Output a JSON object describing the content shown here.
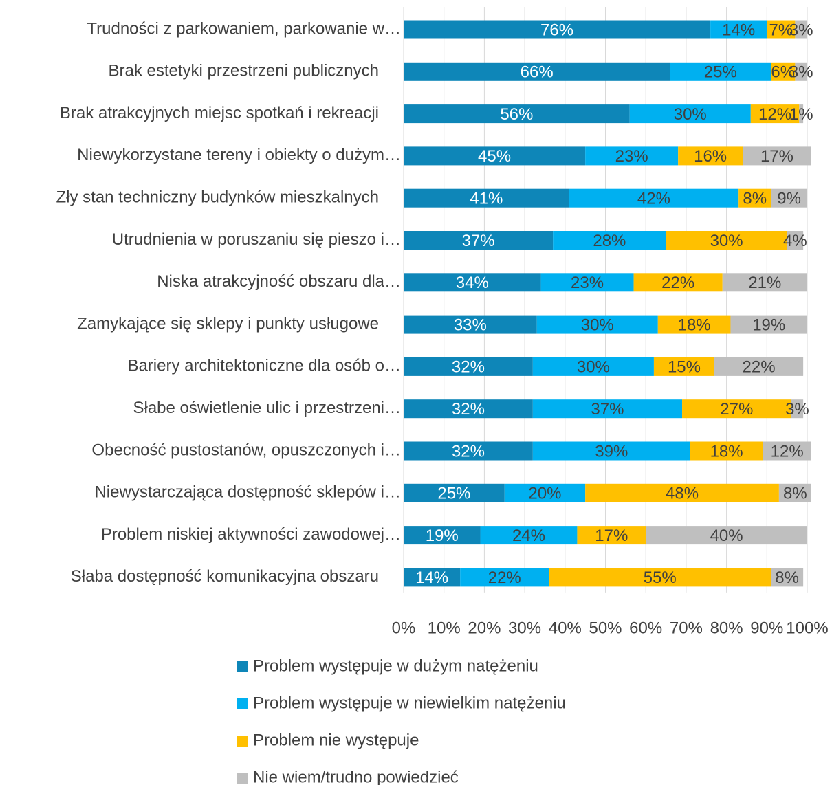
{
  "chart_data": {
    "type": "stacked_bar_horizontal",
    "categories": [
      "Trudności z parkowaniem, parkowanie w…",
      "Brak estetyki przestrzeni publicznych",
      "Brak atrakcyjnych miejsc spotkań i rekreacji",
      "Niewykorzystane tereny i obiekty o dużym…",
      "Zły stan techniczny budynków mieszkalnych",
      "Utrudnienia w poruszaniu się pieszo i…",
      "Niska atrakcyjność obszaru dla…",
      "Zamykające się sklepy i punkty usługowe",
      "Bariery architektoniczne dla osób o…",
      "Słabe oświetlenie ulic i przestrzeni…",
      "Obecność pustostanów, opuszczonych i…",
      "Niewystarczająca dostępność sklepów i…",
      "Problem niskiej aktywności zawodowej…",
      "Słaba dostępność komunikacyjna obszaru"
    ],
    "series": [
      {
        "name": "Problem występuje w dużym natężeniu",
        "color": "#0e86b8",
        "values": [
          76,
          66,
          56,
          45,
          41,
          37,
          34,
          33,
          32,
          32,
          32,
          25,
          19,
          14
        ],
        "value_labels": [
          "76%",
          "66%",
          "56%",
          "45%",
          "41%",
          "37%",
          "34%",
          "33%",
          "32%",
          "32%",
          "32%",
          "25%",
          "19%",
          "14%"
        ]
      },
      {
        "name": "Problem występuje w niewielkim natężeniu",
        "color": "#00b0f0",
        "values": [
          14,
          25,
          30,
          23,
          42,
          28,
          23,
          30,
          30,
          37,
          39,
          20,
          24,
          22
        ],
        "value_labels": [
          "14%",
          "25%",
          "30%",
          "23%",
          "42%",
          "28%",
          "23%",
          "30%",
          "30%",
          "37%",
          "39%",
          "20%",
          "24%",
          "22%"
        ]
      },
      {
        "name": "Problem nie występuje",
        "color": "#ffc000",
        "values": [
          7,
          6,
          12,
          16,
          8,
          30,
          22,
          18,
          15,
          27,
          18,
          48,
          17,
          55
        ],
        "value_labels": [
          "7%",
          "6%",
          "12%",
          "16%",
          "8%",
          "30%",
          "22%",
          "18%",
          "15%",
          "27%",
          "18%",
          "48%",
          "17%",
          "55%"
        ]
      },
      {
        "name": "Nie wiem/trudno powiedzieć",
        "color": "#bfbfbf",
        "values": [
          3,
          3,
          1,
          17,
          9,
          4,
          21,
          19,
          22,
          3,
          12,
          8,
          40,
          8
        ],
        "value_labels": [
          "3%",
          "3%",
          "1%",
          "17%",
          "9%",
          "4%",
          "21%",
          "19%",
          "22%",
          "3%",
          "12%",
          "8%",
          "40%",
          "8%"
        ]
      }
    ],
    "xlim": [
      0,
      100
    ],
    "xticks": [
      {
        "value": 0,
        "label": "0%"
      },
      {
        "value": 10,
        "label": "10%"
      },
      {
        "value": 20,
        "label": "20%"
      },
      {
        "value": 30,
        "label": "30%"
      },
      {
        "value": 40,
        "label": "40%"
      },
      {
        "value": 50,
        "label": "50%"
      },
      {
        "value": 60,
        "label": "60%"
      },
      {
        "value": 70,
        "label": "70%"
      },
      {
        "value": 80,
        "label": "80%"
      },
      {
        "value": 90,
        "label": "90%"
      },
      {
        "value": 100,
        "label": "100%"
      }
    ],
    "grid": true
  }
}
